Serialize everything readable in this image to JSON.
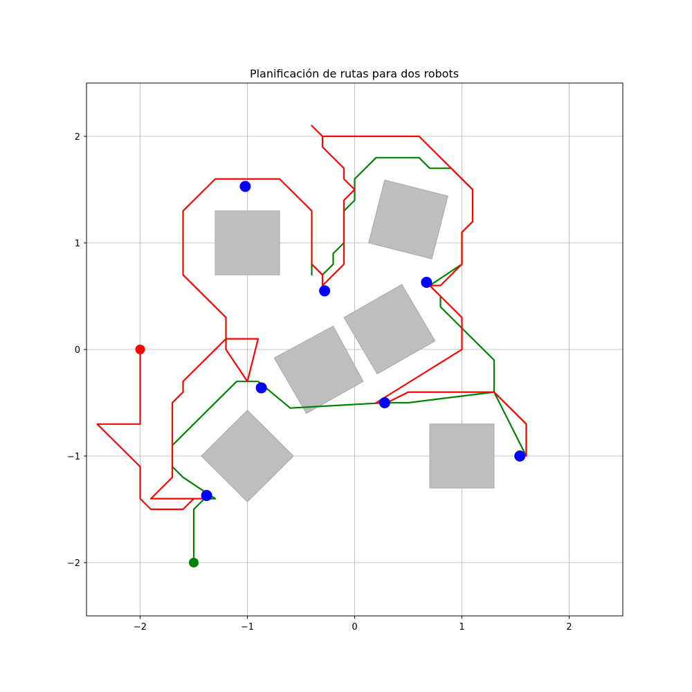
{
  "chart_data": {
    "type": "line",
    "title": "Planificación de rutas para dos robots",
    "xlabel": "",
    "ylabel": "",
    "xlim": [
      -2.5,
      2.5
    ],
    "ylim": [
      -2.5,
      2.5
    ],
    "xticks": [
      -2,
      -1,
      0,
      1,
      2
    ],
    "yticks": [
      -2,
      -1,
      0,
      1,
      2
    ],
    "xtick_labels": [
      "−2",
      "−1",
      "0",
      "1",
      "2"
    ],
    "ytick_labels": [
      "−2",
      "−1",
      "0",
      "1",
      "2"
    ],
    "grid": true,
    "legend": null,
    "colors": {
      "obstacle_fill": "#bebebe",
      "obstacle_edge": "#a8a8a8",
      "waypoint": "#0000ff",
      "grid": "#b0b0b0"
    },
    "obstacles": [
      [
        [
          -1.3,
          0.7
        ],
        [
          -0.7,
          0.7
        ],
        [
          -0.7,
          1.3
        ],
        [
          -1.3,
          1.3
        ]
      ],
      [
        [
          0.13,
          1.0
        ],
        [
          0.72,
          0.85
        ],
        [
          0.87,
          1.44
        ],
        [
          0.28,
          1.59
        ]
      ],
      [
        [
          -0.1,
          0.3
        ],
        [
          0.44,
          0.61
        ],
        [
          0.75,
          0.08
        ],
        [
          0.21,
          -0.23
        ]
      ],
      [
        [
          -0.75,
          -0.08
        ],
        [
          -0.2,
          0.22
        ],
        [
          0.08,
          -0.3
        ],
        [
          -0.45,
          -0.6
        ]
      ],
      [
        [
          -1.43,
          -1.0
        ],
        [
          -1.0,
          -0.57
        ],
        [
          -0.57,
          -1.0
        ],
        [
          -1.0,
          -1.43
        ]
      ],
      [
        [
          0.7,
          -0.7
        ],
        [
          1.3,
          -0.7
        ],
        [
          1.3,
          -1.3
        ],
        [
          0.7,
          -1.3
        ]
      ]
    ],
    "waypoints": [
      {
        "x": -1.02,
        "y": 1.53
      },
      {
        "x": -0.28,
        "y": 0.55
      },
      {
        "x": 0.67,
        "y": 0.63
      },
      {
        "x": -0.87,
        "y": -0.36
      },
      {
        "x": 0.28,
        "y": -0.5
      },
      {
        "x": 1.54,
        "y": -1.0
      },
      {
        "x": -1.38,
        "y": -1.37
      }
    ],
    "series": [
      {
        "color": "#008000",
        "start": {
          "x": -1.5,
          "y": -2.0
        },
        "x": [
          -1.5,
          -1.5,
          -1.4,
          -1.3,
          -1.6,
          -1.7,
          -1.7,
          -1.1,
          -0.9,
          -0.6,
          0.28,
          0.5,
          1.3,
          1.6,
          1.6,
          1.3,
          1.3,
          0.8,
          0.8,
          0.7,
          0.7,
          1.0,
          1.0,
          1.1,
          1.1,
          0.9,
          0.7,
          0.6,
          0.2,
          0.0,
          0.0,
          -0.1,
          -0.1,
          -0.2,
          -0.2,
          -0.3,
          -0.4,
          -0.4
        ],
        "y": [
          -2.0,
          -1.5,
          -1.4,
          -1.4,
          -1.2,
          -1.1,
          -0.9,
          -0.3,
          -0.3,
          -0.55,
          -0.5,
          -0.5,
          -0.4,
          -0.7,
          -1.0,
          -0.4,
          -0.1,
          0.4,
          0.5,
          0.6,
          0.6,
          0.8,
          1.1,
          1.2,
          1.5,
          1.7,
          1.7,
          1.8,
          1.8,
          1.6,
          1.4,
          1.3,
          1.0,
          0.9,
          0.8,
          0.7,
          0.8,
          0.7
        ]
      },
      {
        "color": "#ff0000",
        "start": {
          "x": -2.0,
          "y": 0.0
        },
        "x": [
          -2.0,
          -2.0,
          -2.4,
          -2.0,
          -2.0,
          -1.9,
          -1.6,
          -1.5,
          -1.4,
          -1.8,
          -1.9,
          -1.7,
          -1.7,
          -1.6,
          -1.6,
          -1.2,
          -0.9,
          -1.0,
          -1.2,
          -1.2,
          -1.6,
          -1.6,
          -1.3,
          -0.7,
          -0.4,
          -0.4,
          -0.3,
          -0.3,
          -0.1,
          -0.1,
          0.0,
          -0.1,
          -0.1,
          -0.3,
          -0.3,
          -0.4,
          -0.3,
          0.6,
          1.1,
          1.1,
          1.0,
          1.0,
          0.8,
          0.7,
          1.0,
          1.0,
          0.2,
          0.3,
          0.5,
          1.3,
          1.6,
          1.6
        ],
        "y": [
          0.0,
          -0.7,
          -0.7,
          -1.1,
          -1.4,
          -1.5,
          -1.5,
          -1.4,
          -1.4,
          -1.4,
          -1.4,
          -1.2,
          -0.5,
          -0.4,
          -0.3,
          0.1,
          0.1,
          -0.3,
          0.0,
          0.3,
          0.7,
          1.3,
          1.6,
          1.6,
          1.3,
          0.8,
          0.7,
          0.6,
          0.8,
          1.4,
          1.5,
          1.6,
          1.7,
          1.9,
          2.0,
          2.1,
          2.0,
          2.0,
          1.5,
          1.2,
          1.1,
          0.8,
          0.6,
          0.6,
          0.3,
          0.0,
          -0.5,
          -0.5,
          -0.4,
          -0.4,
          -0.7,
          -1.0
        ]
      }
    ]
  }
}
